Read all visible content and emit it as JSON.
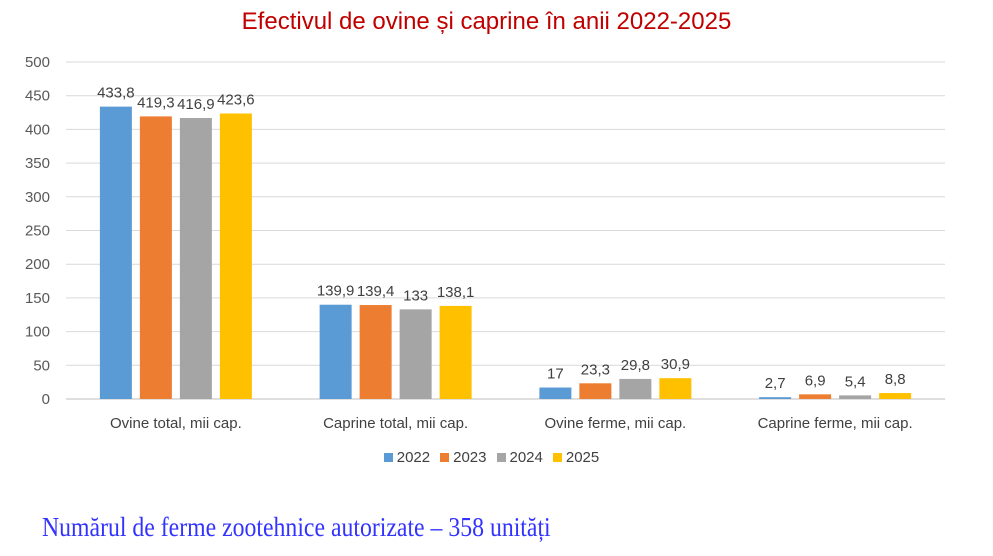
{
  "chart_data": {
    "type": "bar",
    "title": "Efectivul de ovine și caprine în anii 2022-2025",
    "categories": [
      "Ovine total, mii cap.",
      "Caprine total, mii cap.",
      "Ovine ferme, mii cap.",
      "Caprine ferme, mii cap."
    ],
    "series": [
      {
        "name": "2022",
        "color": "#5b9bd5",
        "values": [
          433.8,
          139.9,
          17,
          2.7
        ],
        "labels": [
          "433,8",
          "139,9",
          "17",
          "2,7"
        ]
      },
      {
        "name": "2023",
        "color": "#ed7d31",
        "values": [
          419.3,
          139.4,
          23.3,
          6.9
        ],
        "labels": [
          "419,3",
          "139,4",
          "23,3",
          "6,9"
        ]
      },
      {
        "name": "2024",
        "color": "#a5a5a5",
        "values": [
          416.9,
          133,
          29.8,
          5.4
        ],
        "labels": [
          "416,9",
          "133",
          "29,8",
          "5,4"
        ]
      },
      {
        "name": "2025",
        "color": "#ffc000",
        "values": [
          423.6,
          138.1,
          30.9,
          8.8
        ],
        "labels": [
          "423,6",
          "138,1",
          "30,9",
          "8,8"
        ]
      }
    ],
    "ylim": [
      0,
      500
    ],
    "yticks": [
      "0",
      "50",
      "100",
      "150",
      "200",
      "250",
      "300",
      "350",
      "400",
      "450",
      "500"
    ],
    "grid": true,
    "legend_placement": "bottom"
  },
  "footer": "Numărul de ferme zootehnice autorizate – 358 unități"
}
